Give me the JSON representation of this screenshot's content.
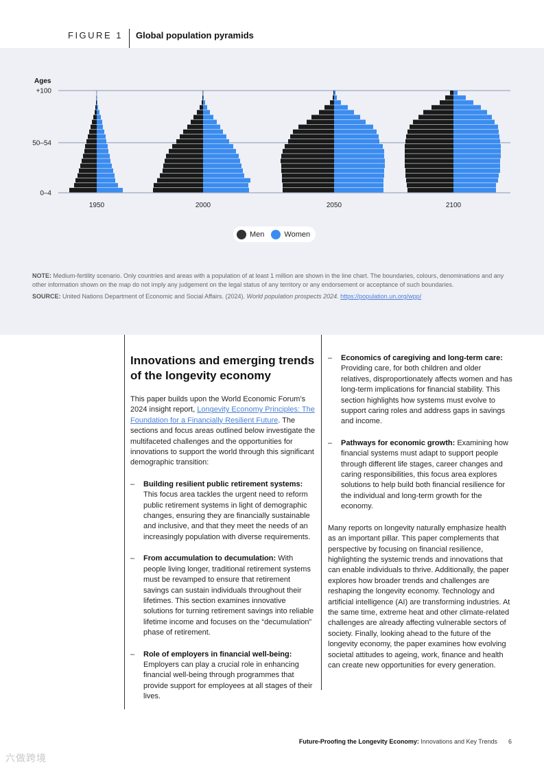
{
  "figure": {
    "label": "FIGURE 1",
    "title": "Global population pyramids"
  },
  "chart_data": {
    "type": "population-pyramid",
    "y_axis_title": "Ages",
    "y_tick_labels": [
      "+100",
      "50–54",
      "0–4"
    ],
    "age_groups_count": 21,
    "units": "relative share (approx., not labeled)",
    "series_names": [
      "Men",
      "Women"
    ],
    "colors": {
      "men": "#1a1a1a",
      "women": "#3b8cf0"
    },
    "pyramids": [
      {
        "year": "1950",
        "men": [
          40,
          33,
          31,
          28,
          26,
          24,
          22,
          20,
          18,
          17,
          15,
          13,
          11,
          9,
          7,
          5,
          3,
          2,
          1,
          0.5,
          0.3
        ],
        "women": [
          38,
          31,
          27,
          26,
          24,
          22,
          20,
          19,
          17,
          16,
          14,
          13,
          11,
          9,
          8,
          6,
          4,
          2,
          1,
          0.5,
          0.3
        ]
      },
      {
        "year": "2000",
        "men": [
          73,
          72,
          67,
          63,
          59,
          58,
          56,
          54,
          50,
          45,
          39,
          34,
          29,
          23,
          18,
          14,
          9,
          5,
          2,
          1,
          0.5
        ],
        "women": [
          67,
          66,
          69,
          60,
          58,
          56,
          54,
          52,
          48,
          44,
          38,
          34,
          29,
          25,
          20,
          15,
          10,
          6,
          3,
          1,
          0.5
        ]
      },
      {
        "year": "2050",
        "men": [
          75,
          75,
          76,
          76,
          77,
          77,
          78,
          77,
          75,
          72,
          67,
          64,
          60,
          52,
          40,
          33,
          22,
          14,
          6,
          2,
          1
        ],
        "women": [
          72,
          72,
          72,
          73,
          73,
          74,
          74,
          73,
          73,
          71,
          66,
          65,
          62,
          57,
          46,
          38,
          29,
          20,
          10,
          4,
          2
        ]
      },
      {
        "year": "2100",
        "men": [
          67,
          68,
          69,
          70,
          70,
          71,
          71,
          71,
          71,
          71,
          70,
          69,
          67,
          64,
          59,
          51,
          44,
          32,
          20,
          12,
          5
        ],
        "women": [
          62,
          62,
          65,
          66,
          68,
          68,
          68,
          69,
          69,
          69,
          68,
          67,
          66,
          65,
          60,
          56,
          49,
          40,
          29,
          18,
          6
        ]
      }
    ]
  },
  "legend": {
    "men": "Men",
    "women": "Women"
  },
  "notes": {
    "note_label": "NOTE:",
    "note_text": "Medium-fertility scenario. Only countries and areas with a population of at least 1 million are shown in the line chart. The boundaries, colours, denominations and any other information shown on the map do not imply any judgement on the legal status of any territory or any endorsement or acceptance of such boundaries.",
    "source_label": "SOURCE:",
    "source_text": "United Nations Department of Economic and Social Affairs. (2024).",
    "source_title": "World population prospects 2024.",
    "source_url": "https://population.un.org/wpp/"
  },
  "article": {
    "title": "Innovations and emerging trends of the longevity economy",
    "intro_before": "This paper builds upon the World Economic Forum’s 2024 insight report,",
    "intro_link": "Longevity Economy Principles: The Foundation for a Financially Resilient Future",
    "intro_after": ". The sections and focus areas outlined below investigate the multifaceted challenges and the opportunities for innovations to support the world through this significant demographic transition:",
    "bullets_left": [
      {
        "title": "Building resilient public retirement systems:",
        "text": "This focus area tackles the urgent need to reform public retirement systems in light of demographic changes, ensuring they are financially sustainable and inclusive, and that they meet the needs of an increasingly population with diverse requirements."
      },
      {
        "title": "From accumulation to decumulation:",
        "text": "With people living longer, traditional retirement systems must be revamped to ensure that retirement savings can sustain individuals throughout their lifetimes. This section examines innovative solutions for turning retirement savings into reliable lifetime income and focuses on the “decumulation” phase of retirement."
      },
      {
        "title": "Role of employers in financial well-being:",
        "text": "Employers can play a crucial role in enhancing financial well-being through programmes that provide support for employees at all stages of their lives."
      }
    ],
    "bullets_right": [
      {
        "title": "Economics of caregiving and long-term care:",
        "text": "Providing care, for both children and older relatives, disproportionately affects women and has long-term implications for financial stability. This section highlights how systems must evolve to support caring roles and address gaps in savings and income."
      },
      {
        "title": "Pathways for economic growth:",
        "text": "Examining how financial systems must adapt to support people through different life stages, career changes and caring responsibilities, this focus area explores solutions to help build both financial resilience for the individual and long-term growth for the economy."
      }
    ],
    "closing": "Many reports on longevity naturally emphasize health as an important pillar. This paper complements that perspective by focusing on financial resilience, highlighting the systemic trends and innovations that can enable individuals to thrive. Additionally, the paper explores how broader trends and challenges are reshaping the longevity economy. Technology and artificial intelligence (AI) are transforming industries. At the same time, extreme heat and other climate-related challenges are already affecting vulnerable sectors of society. Finally, looking ahead to the future of the longevity economy, the paper examines how evolving societal attitudes to ageing, work, finance and health can create new opportunities for every generation."
  },
  "footer": {
    "doc_title_bold": "Future-Proofing the Longevity Economy:",
    "doc_title_rest": "Innovations and Key Trends",
    "page_number": "6"
  },
  "watermark": "六做跨境"
}
